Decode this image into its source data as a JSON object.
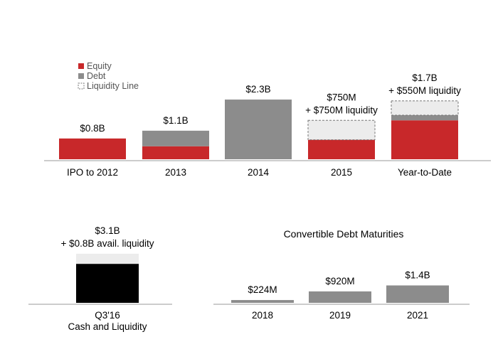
{
  "chart_data": [
    {
      "type": "bar",
      "stacked": true,
      "legend_position": "top-left",
      "legend": [
        {
          "name": "Equity",
          "color": "#c8282a"
        },
        {
          "name": "Debt",
          "color": "#8c8c8c"
        },
        {
          "name": "Liquidity Line",
          "color": "#ececec",
          "style": "dashed"
        }
      ],
      "categories": [
        "IPO to 2012",
        "2013",
        "2014",
        "2015",
        "Year-to-Date"
      ],
      "series": [
        {
          "name": "Equity",
          "values": [
            0.8,
            0.5,
            0,
            0.75,
            1.5
          ]
        },
        {
          "name": "Debt",
          "values": [
            0,
            0.6,
            2.3,
            0,
            0.2
          ]
        },
        {
          "name": "Liquidity Line",
          "values": [
            0,
            0,
            0,
            0.75,
            0.55
          ]
        }
      ],
      "data_labels": [
        [
          "$0.8B"
        ],
        [
          "$1.1B"
        ],
        [
          "$2.3B"
        ],
        [
          "$750M",
          "+ $750M liquidity"
        ],
        [
          "$1.7B",
          "+ $550M liquidity"
        ]
      ],
      "ylim": [
        0,
        4.0
      ],
      "colors": {
        "equity": "#c8282a",
        "debt": "#8c8c8c",
        "liquidity": "#ececec"
      },
      "grid": false
    },
    {
      "type": "bar",
      "stacked": true,
      "categories": [
        "Q3'16\nCash and Liquidity"
      ],
      "series": [
        {
          "name": "Cash",
          "values": [
            3.1
          ]
        },
        {
          "name": "Available liquidity",
          "values": [
            0.8
          ]
        }
      ],
      "data_labels": [
        [
          "$3.1B",
          "+ $0.8B avail. liquidity"
        ]
      ],
      "ylim": [
        0,
        4.2
      ],
      "colors": {
        "cash": "#000000",
        "liquidity": "#ececec"
      },
      "grid": false
    },
    {
      "type": "bar",
      "title": "Convertible Debt Maturities",
      "categories": [
        "2018",
        "2019",
        "2021"
      ],
      "series": [
        {
          "values": [
            0.224,
            0.92,
            1.4
          ]
        }
      ],
      "data_labels": [
        [
          "$224M"
        ],
        [
          "$920M"
        ],
        [
          "$1.4B"
        ]
      ],
      "ylim": [
        0,
        5.2
      ],
      "colors": {
        "bar": "#8c8c8c"
      },
      "grid": false
    }
  ]
}
